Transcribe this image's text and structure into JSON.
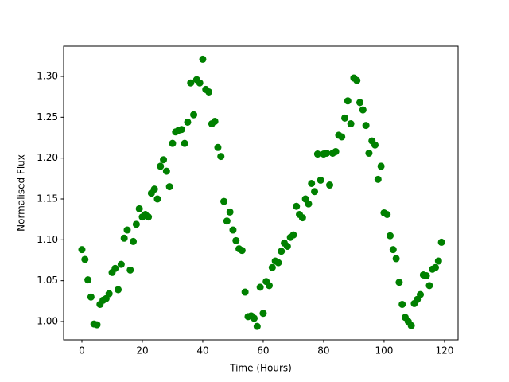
{
  "chart_data": {
    "type": "scatter",
    "xlabel": "Time (Hours)",
    "ylabel": "Normalised Flux",
    "series": [
      {
        "color": "#008000",
        "x": [
          0,
          1,
          2,
          3,
          4,
          5,
          6,
          7,
          8,
          9,
          10,
          11,
          12,
          13,
          14,
          15,
          16,
          17,
          18,
          19,
          20,
          21,
          22,
          23,
          24,
          25,
          26,
          27,
          28,
          29,
          30,
          31,
          32,
          33,
          34,
          35,
          36,
          37,
          38,
          39,
          40,
          41,
          42,
          43,
          44,
          45,
          46,
          47,
          48,
          49,
          50,
          51,
          52,
          53,
          54,
          55,
          56,
          57,
          58,
          59,
          60,
          61,
          62,
          63,
          64,
          65,
          66,
          67,
          68,
          69,
          70,
          71,
          72,
          73,
          74,
          75,
          76,
          77,
          78,
          79,
          80,
          81,
          82,
          83,
          84,
          85,
          86,
          87,
          88,
          89,
          90,
          91,
          92,
          93,
          94,
          95,
          96,
          97,
          98,
          99,
          100,
          101,
          102,
          103,
          104,
          105,
          106,
          107,
          108,
          109,
          110,
          111,
          112,
          113,
          114,
          115,
          116,
          117,
          118,
          119
        ],
        "values": [
          1.088,
          1.076,
          1.051,
          1.03,
          0.997,
          0.996,
          1.021,
          1.026,
          1.028,
          1.034,
          1.06,
          1.065,
          1.039,
          1.07,
          1.102,
          1.112,
          1.063,
          1.098,
          1.119,
          1.138,
          1.128,
          1.131,
          1.128,
          1.157,
          1.162,
          1.15,
          1.19,
          1.198,
          1.184,
          1.165,
          1.218,
          1.232,
          1.234,
          1.235,
          1.218,
          1.244,
          1.292,
          1.253,
          1.296,
          1.292,
          1.321,
          1.284,
          1.281,
          1.242,
          1.245,
          1.213,
          1.202,
          1.147,
          1.123,
          1.134,
          1.112,
          1.099,
          1.089,
          1.087,
          1.036,
          1.006,
          1.007,
          1.004,
          0.994,
          1.042,
          1.01,
          1.049,
          1.044,
          1.066,
          1.074,
          1.072,
          1.086,
          1.096,
          1.092,
          1.103,
          1.106,
          1.141,
          1.131,
          1.127,
          1.15,
          1.144,
          1.169,
          1.159,
          1.205,
          1.173,
          1.205,
          1.206,
          1.167,
          1.206,
          1.208,
          1.228,
          1.226,
          1.249,
          1.27,
          1.242,
          1.298,
          1.295,
          1.268,
          1.259,
          1.24,
          1.206,
          1.221,
          1.216,
          1.174,
          1.19,
          1.133,
          1.131,
          1.105,
          1.088,
          1.077,
          1.048,
          1.021,
          1.005,
          1.0,
          0.995,
          1.022,
          1.027,
          1.033,
          1.057,
          1.056,
          1.044,
          1.064,
          1.066,
          1.074,
          1.097
        ]
      }
    ],
    "xlim": [
      -6.05,
      124.5
    ],
    "ylim": [
      0.9776,
      1.337
    ],
    "xticks": [
      0,
      20,
      40,
      60,
      80,
      100,
      120
    ],
    "yticks": [
      {
        "value": 1.0,
        "label": "1.00"
      },
      {
        "value": 1.05,
        "label": "1.05"
      },
      {
        "value": 1.1,
        "label": "1.10"
      },
      {
        "value": 1.15,
        "label": "1.15"
      },
      {
        "value": 1.2,
        "label": "1.20"
      },
      {
        "value": 1.25,
        "label": "1.25"
      },
      {
        "value": 1.3,
        "label": "1.30"
      }
    ],
    "grid": false
  }
}
